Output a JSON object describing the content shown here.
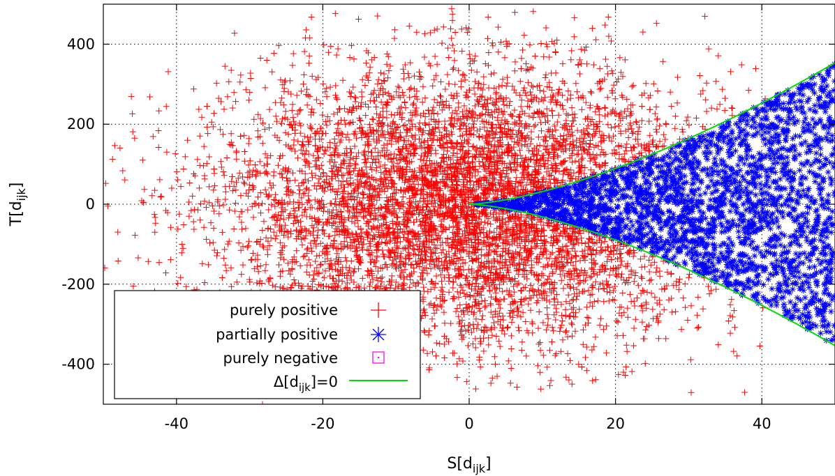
{
  "chart_data": {
    "type": "scatter",
    "title": "",
    "xlabel_main": "S[d",
    "xlabel_sub": "ijk",
    "xlabel_end": "]",
    "ylabel_main": "T[d",
    "ylabel_sub": "ijk",
    "ylabel_end": "]",
    "xlim": [
      -50,
      50
    ],
    "ylim": [
      -500,
      500
    ],
    "xticks": [
      -40,
      -20,
      0,
      20,
      40
    ],
    "yticks": [
      -400,
      -200,
      0,
      200,
      400
    ],
    "grid": true,
    "legend_position": "bottom-left",
    "boundary_curve": "T = ±(S/3)^(3/2)·√27",
    "series": [
      {
        "name": "purely positive",
        "marker": "plus",
        "color": "#ff0000",
        "count": 6000
      },
      {
        "name": "partially positive",
        "marker": "asterisk",
        "color": "#0000ff",
        "count": 2600
      },
      {
        "name": "purely negative",
        "marker": "dotted-square",
        "color": "#ff00ff",
        "count": 0
      },
      {
        "name_main": "Δ[d",
        "name_sub": "ijk",
        "name_end": "]=0",
        "marker": "line",
        "color": "#00dd00"
      }
    ]
  }
}
